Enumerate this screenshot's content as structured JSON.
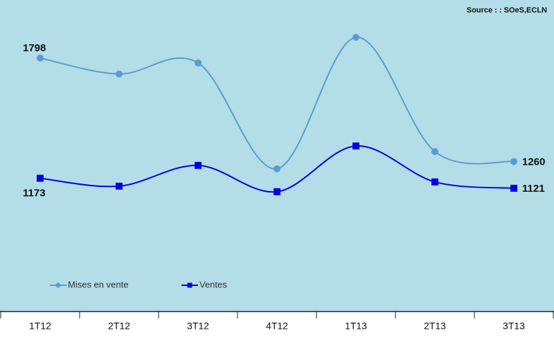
{
  "chart_data": {
    "type": "line",
    "source": "Source : : SOeS,ECLN",
    "categories": [
      "1T12",
      "2T12",
      "3T12",
      "4T12",
      "1T13",
      "2T13",
      "3T13"
    ],
    "series": [
      {
        "name": "Mises en vente",
        "color": "#5b9bd5",
        "marker": "circle",
        "values": [
          1798,
          1715,
          1773,
          1222,
          1906,
          1312,
          1260
        ]
      },
      {
        "name": "Ventes",
        "color": "#0000e6",
        "marker": "square",
        "values": [
          1173,
          1132,
          1240,
          1103,
          1341,
          1154,
          1121
        ]
      }
    ],
    "ylim": [
      480,
      2100
    ],
    "smooth": true,
    "data_label_points": "first-last",
    "legend": "bottom-left",
    "background": "#b3dde7"
  }
}
